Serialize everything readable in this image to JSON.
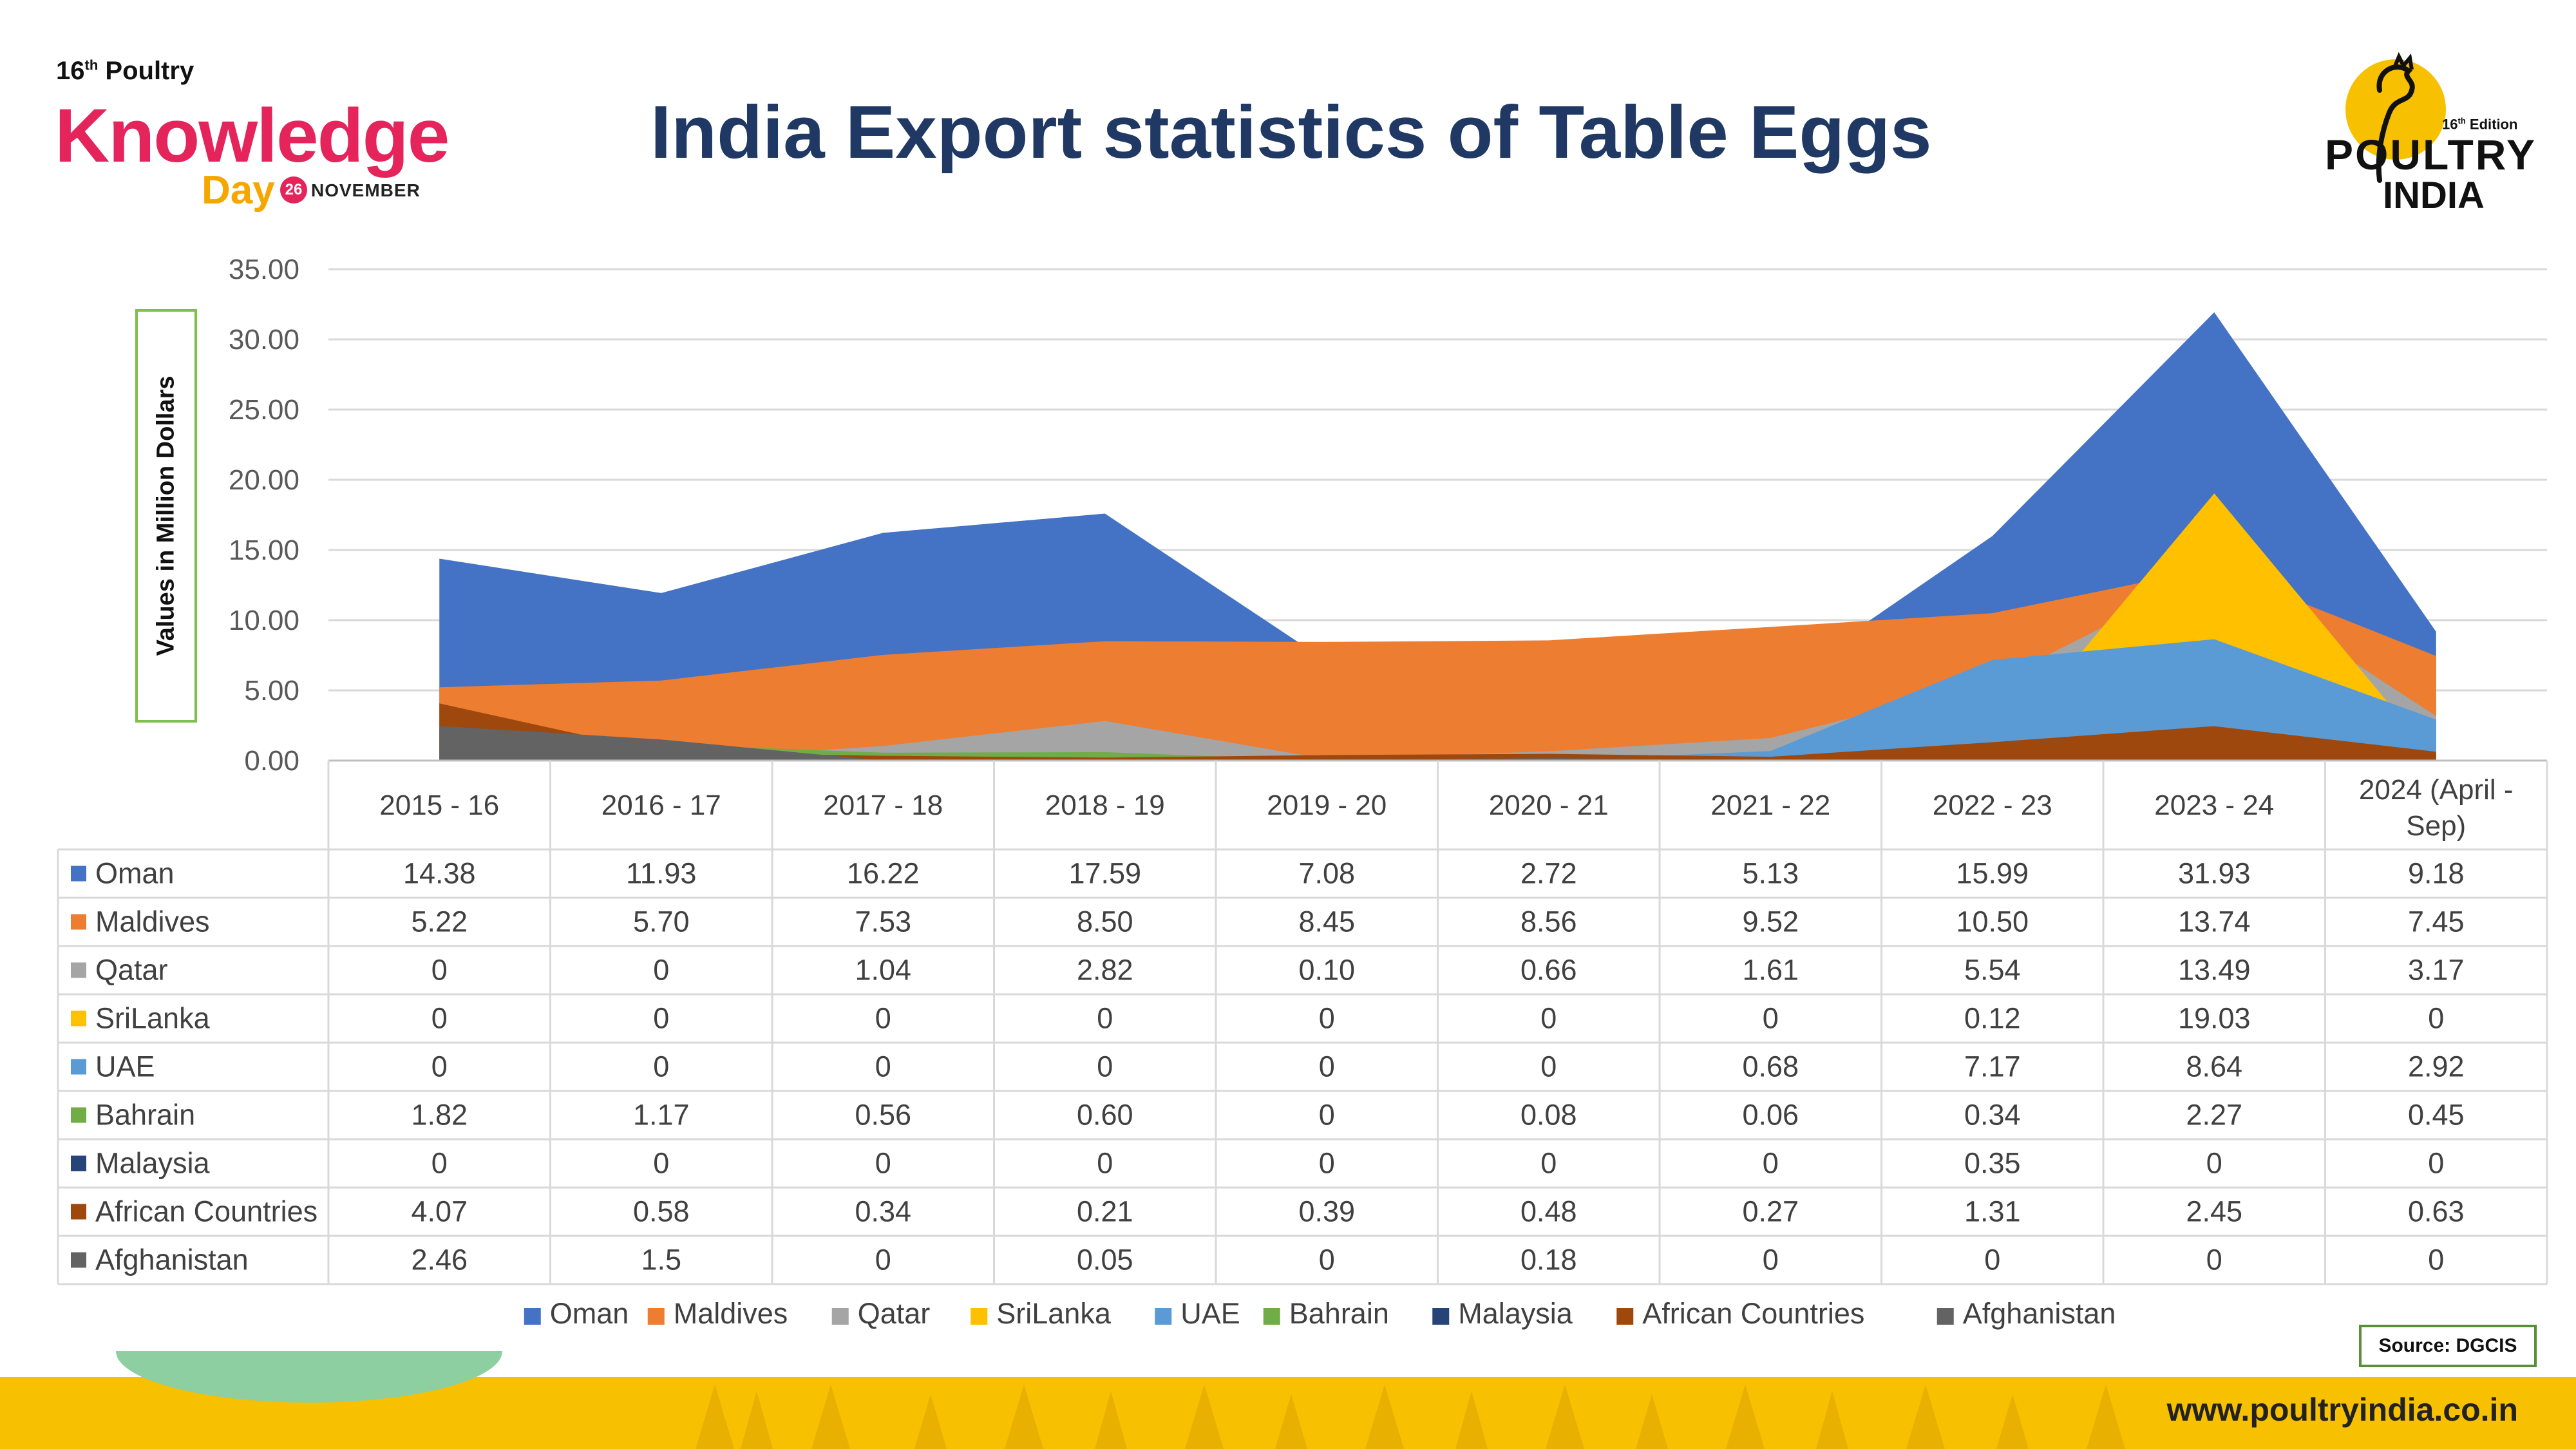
{
  "header": {
    "title": "India Export statistics of Table Eggs",
    "event_edition": "16",
    "event_edition_suffix": "th",
    "event_word": "Poultry",
    "event_name": "Knowledge",
    "event_day": "Day",
    "event_date_day": "26",
    "event_date_month": "NOVEMBER",
    "brand_edition": "16",
    "brand_edition_suffix": "th",
    "brand_edition_word": "Edition",
    "brand_name": "POULTRY",
    "brand_country": "INDIA"
  },
  "footer": {
    "source": "Source: DGCIS",
    "website": "www.poultryindia.co.in"
  },
  "colors": {
    "title": "#1f3864",
    "footer_band": "#f7c000",
    "accent_green": "#7fbf4d"
  },
  "chart_data": {
    "type": "area",
    "title": "India Export statistics of Table Eggs",
    "ylabel": "Values in Million Dollars",
    "xlabel": "",
    "ylim": [
      0,
      35
    ],
    "ytick_step": 5,
    "ytick_labels": [
      "0.00",
      "5.00",
      "10.00",
      "15.00",
      "20.00",
      "25.00",
      "30.00",
      "35.00"
    ],
    "grid": true,
    "legend_position": "bottom",
    "categories": [
      "2015 - 16",
      "2016 - 17",
      "2017 - 18",
      "2018 - 19",
      "2019 - 20",
      "2020 - 21",
      "2021 - 22",
      "2022 - 23",
      "2023 - 24",
      "2024 (April - Sep)"
    ],
    "series": [
      {
        "name": "Oman",
        "color": "#4472c4",
        "values": [
          14.38,
          11.93,
          16.22,
          17.59,
          7.08,
          2.72,
          5.13,
          15.99,
          31.93,
          9.18
        ],
        "labels": [
          "14.38",
          "11.93",
          "16.22",
          "17.59",
          "7.08",
          "2.72",
          "5.13",
          "15.99",
          "31.93",
          "9.18"
        ]
      },
      {
        "name": "Maldives",
        "color": "#ed7d31",
        "values": [
          5.22,
          5.7,
          7.53,
          8.5,
          8.45,
          8.56,
          9.52,
          10.5,
          13.74,
          7.45
        ],
        "labels": [
          "5.22",
          "5.70",
          "7.53",
          "8.50",
          "8.45",
          "8.56",
          "9.52",
          "10.50",
          "13.74",
          "7.45"
        ]
      },
      {
        "name": "Qatar",
        "color": "#a5a5a5",
        "values": [
          0,
          0,
          1.04,
          2.82,
          0.1,
          0.66,
          1.61,
          5.54,
          13.49,
          3.17
        ],
        "labels": [
          "0",
          "0",
          "1.04",
          "2.82",
          "0.10",
          "0.66",
          "1.61",
          "5.54",
          "13.49",
          "3.17"
        ]
      },
      {
        "name": "SriLanka",
        "color": "#ffc000",
        "values": [
          0,
          0,
          0,
          0,
          0,
          0,
          0,
          0.12,
          19.03,
          0
        ],
        "labels": [
          "0",
          "0",
          "0",
          "0",
          "0",
          "0",
          "0",
          "0.12",
          "19.03",
          "0"
        ]
      },
      {
        "name": "UAE",
        "color": "#5b9bd5",
        "values": [
          0,
          0,
          0,
          0,
          0,
          0,
          0.68,
          7.17,
          8.64,
          2.92
        ],
        "labels": [
          "0",
          "0",
          "0",
          "0",
          "0",
          "0",
          "0.68",
          "7.17",
          "8.64",
          "2.92"
        ]
      },
      {
        "name": "Bahrain",
        "color": "#70ad47",
        "values": [
          1.82,
          1.17,
          0.56,
          0.6,
          0,
          0.08,
          0.06,
          0.34,
          2.27,
          0.45
        ],
        "labels": [
          "1.82",
          "1.17",
          "0.56",
          "0.60",
          "0",
          "0.08",
          "0.06",
          "0.34",
          "2.27",
          "0.45"
        ]
      },
      {
        "name": "Malaysia",
        "color": "#264478",
        "values": [
          0,
          0,
          0,
          0,
          0,
          0,
          0,
          0.35,
          0,
          0
        ],
        "labels": [
          "0",
          "0",
          "0",
          "0",
          "0",
          "0",
          "0",
          "0.35",
          "0",
          "0"
        ]
      },
      {
        "name": "African Countries",
        "color": "#9e480e",
        "values": [
          4.07,
          0.58,
          0.34,
          0.21,
          0.39,
          0.48,
          0.27,
          1.31,
          2.45,
          0.63
        ],
        "labels": [
          "4.07",
          "0.58",
          "0.34",
          "0.21",
          "0.39",
          "0.48",
          "0.27",
          "1.31",
          "2.45",
          "0.63"
        ]
      },
      {
        "name": "Afghanistan",
        "color": "#636363",
        "values": [
          2.46,
          1.5,
          0,
          0.05,
          0,
          0.18,
          0,
          0,
          0,
          0
        ],
        "labels": [
          "2.46",
          "1.5",
          "0",
          "0.05",
          "0",
          "0.18",
          "0",
          "0",
          "0",
          "0"
        ]
      }
    ]
  }
}
